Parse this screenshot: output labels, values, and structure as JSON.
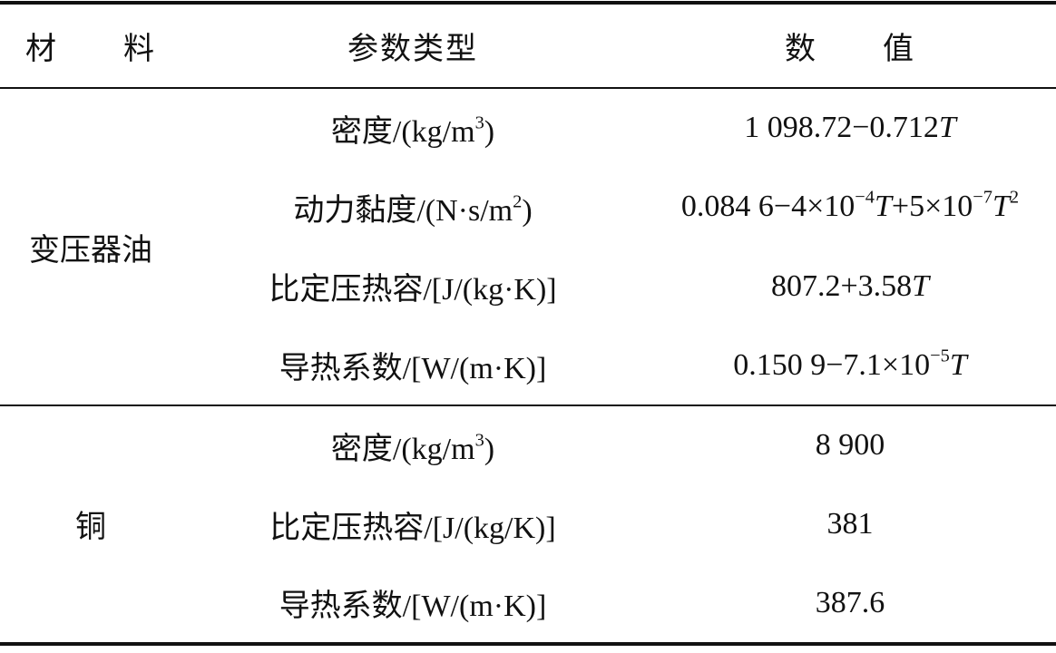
{
  "table": {
    "headers": [
      "材　　料",
      "参数类型",
      "数　　值"
    ],
    "groups": [
      {
        "material": "变压器油",
        "rows": [
          {
            "param": [
              {
                "t": "密度/(kg/m"
              },
              {
                "sup": "3"
              },
              {
                "t": ")"
              }
            ],
            "value": [
              {
                "t": "1 098.72−0.712"
              },
              {
                "i": "T"
              }
            ]
          },
          {
            "param": [
              {
                "t": "动力黏度/(N·s/m"
              },
              {
                "sup": "2"
              },
              {
                "t": ")"
              }
            ],
            "value": [
              {
                "t": "0.084 6−4×10"
              },
              {
                "sup": "−4"
              },
              {
                "i": "T"
              },
              {
                "t": "+5×10"
              },
              {
                "sup": "−7"
              },
              {
                "i": "T"
              },
              {
                "sup": "2"
              }
            ]
          },
          {
            "param": [
              {
                "t": "比定压热容/[J/(kg·K)]"
              }
            ],
            "value": [
              {
                "t": "807.2+3.58"
              },
              {
                "i": "T"
              }
            ]
          },
          {
            "param": [
              {
                "t": "导热系数/[W/(m·K)]"
              }
            ],
            "value": [
              {
                "t": "0.150 9−7.1×10"
              },
              {
                "sup": "−5"
              },
              {
                "i": "T"
              }
            ]
          }
        ]
      },
      {
        "material": "铜",
        "rows": [
          {
            "param": [
              {
                "t": "密度/(kg/m"
              },
              {
                "sup": "3"
              },
              {
                "t": ")"
              }
            ],
            "value": [
              {
                "t": "8 900"
              }
            ]
          },
          {
            "param": [
              {
                "t": "比定压热容/[J/(kg/K)]"
              }
            ],
            "value": [
              {
                "t": "381"
              }
            ]
          },
          {
            "param": [
              {
                "t": "导热系数/[W/(m·K)]"
              }
            ],
            "value": [
              {
                "t": "387.6"
              }
            ]
          }
        ]
      }
    ]
  }
}
